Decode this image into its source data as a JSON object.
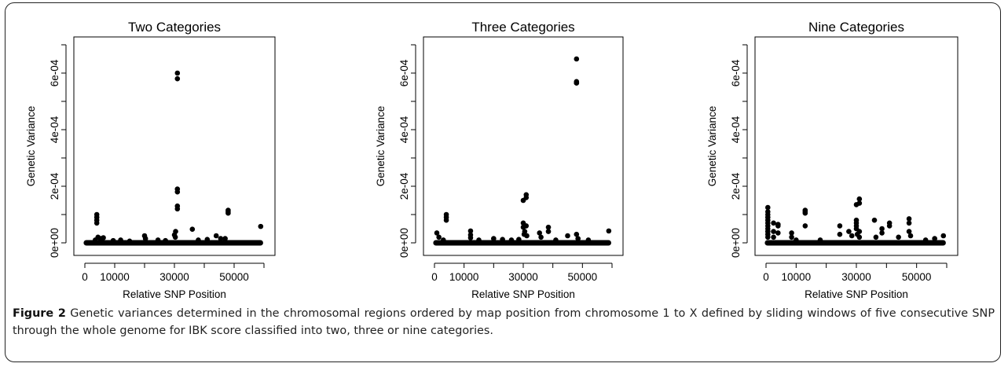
{
  "figure": {
    "label": "Figure 2",
    "caption": "Genetic variances determined in the chromosomal regions ordered by map position from chromosome 1 to X defined by sliding windows of five consecutive SNP through the whole genome for IBK score classified into two, three or nine categories."
  },
  "chart_data": [
    {
      "type": "scatter",
      "title": "Two Categories",
      "xlabel": "Relative SNP Position",
      "ylabel": "Genetic Variance",
      "xlim": [
        0,
        60000
      ],
      "ylim": [
        0,
        0.0007
      ],
      "xticks": [
        "0",
        "10000",
        "30000",
        "50000"
      ],
      "yticks": [
        "0e+00",
        "2e-04",
        "4e-04",
        "6e-04"
      ],
      "baseline_x": [
        500,
        58800
      ],
      "points": [
        [
          4000,
          0.0001
        ],
        [
          4000,
          9e-05
        ],
        [
          4000,
          8e-05
        ],
        [
          4000,
          7e-05
        ],
        [
          4400,
          2e-05
        ],
        [
          3500,
          1e-05
        ],
        [
          5200,
          1.5e-05
        ],
        [
          6200,
          1.8e-05
        ],
        [
          9500,
          8e-06
        ],
        [
          12000,
          1e-05
        ],
        [
          15000,
          6e-06
        ],
        [
          20000,
          2.5e-05
        ],
        [
          20300,
          1.5e-05
        ],
        [
          24500,
          1e-05
        ],
        [
          27000,
          8e-06
        ],
        [
          30000,
          2.8e-05
        ],
        [
          30300,
          2e-05
        ],
        [
          30400,
          4e-05
        ],
        [
          31000,
          0.0006
        ],
        [
          31000,
          0.00058
        ],
        [
          31000,
          0.00019
        ],
        [
          31000,
          0.00018
        ],
        [
          31000,
          0.00013
        ],
        [
          31000,
          0.00012
        ],
        [
          36000,
          4.8e-05
        ],
        [
          38000,
          1e-05
        ],
        [
          41000,
          1.2e-05
        ],
        [
          44000,
          2.5e-05
        ],
        [
          45500,
          1.5e-05
        ],
        [
          48000,
          0.000115
        ],
        [
          48000,
          0.00011
        ],
        [
          48000,
          0.000105
        ],
        [
          47000,
          1.5e-05
        ],
        [
          58900,
          5.8e-05
        ]
      ]
    },
    {
      "type": "scatter",
      "title": "Three Categories",
      "xlabel": "Relative SNP Position",
      "ylabel": "Genetic Variance",
      "xlim": [
        0,
        60000
      ],
      "ylim": [
        0,
        0.0007
      ],
      "xticks": [
        "0",
        "10000",
        "30000",
        "50000"
      ],
      "yticks": [
        "0e+00",
        "2e-04",
        "4e-04",
        "6e-04"
      ],
      "baseline_x": [
        500,
        58800
      ],
      "points": [
        [
          800,
          3.5e-05
        ],
        [
          1500,
          2e-05
        ],
        [
          4000,
          0.0001
        ],
        [
          4000,
          9e-05
        ],
        [
          4000,
          8e-05
        ],
        [
          3000,
          1e-05
        ],
        [
          12200,
          4.2e-05
        ],
        [
          12200,
          2.8e-05
        ],
        [
          12200,
          1.8e-05
        ],
        [
          15000,
          1e-05
        ],
        [
          20000,
          1.5e-05
        ],
        [
          23000,
          1.2e-05
        ],
        [
          26000,
          1e-05
        ],
        [
          28500,
          1.2e-05
        ],
        [
          30000,
          0.00015
        ],
        [
          31000,
          0.00017
        ],
        [
          31000,
          0.00016
        ],
        [
          30000,
          7e-05
        ],
        [
          30000,
          5.5e-05
        ],
        [
          30500,
          4e-05
        ],
        [
          31000,
          6e-05
        ],
        [
          30300,
          3e-05
        ],
        [
          31200,
          2.5e-05
        ],
        [
          35500,
          3.5e-05
        ],
        [
          36000,
          2e-05
        ],
        [
          38500,
          5.5e-05
        ],
        [
          38500,
          4e-05
        ],
        [
          41000,
          1e-05
        ],
        [
          45000,
          2.5e-05
        ],
        [
          48000,
          0.00065
        ],
        [
          48000,
          0.00057
        ],
        [
          48000,
          0.000565
        ],
        [
          48000,
          0.000565
        ],
        [
          48000,
          3e-05
        ],
        [
          48500,
          1.5e-05
        ],
        [
          52000,
          1e-05
        ],
        [
          58900,
          4.2e-05
        ]
      ]
    },
    {
      "type": "scatter",
      "title": "Nine Categories",
      "xlabel": "Relative SNP Position",
      "ylabel": "Genetic Variance",
      "xlim": [
        0,
        60000
      ],
      "ylim": [
        0,
        0.0007
      ],
      "xticks": [
        "0",
        "10000",
        "30000",
        "50000"
      ],
      "yticks": [
        "0e+00",
        "2e-04",
        "4e-04",
        "6e-04"
      ],
      "baseline_x": [
        500,
        58800
      ],
      "points": [
        [
          600,
          0.000125
        ],
        [
          600,
          0.00011
        ],
        [
          600,
          0.0001
        ],
        [
          600,
          9e-05
        ],
        [
          600,
          8e-05
        ],
        [
          600,
          7e-05
        ],
        [
          600,
          6e-05
        ],
        [
          600,
          5e-05
        ],
        [
          600,
          4e-05
        ],
        [
          600,
          3e-05
        ],
        [
          600,
          2e-05
        ],
        [
          2500,
          7e-05
        ],
        [
          2500,
          4e-05
        ],
        [
          2500,
          2e-05
        ],
        [
          4000,
          6.5e-05
        ],
        [
          4000,
          6e-05
        ],
        [
          4000,
          3.5e-05
        ],
        [
          8500,
          3.5e-05
        ],
        [
          8500,
          2e-05
        ],
        [
          10000,
          1e-05
        ],
        [
          13000,
          0.000115
        ],
        [
          13000,
          0.00011
        ],
        [
          13000,
          0.000105
        ],
        [
          13000,
          6e-05
        ],
        [
          18000,
          1e-05
        ],
        [
          24500,
          6e-05
        ],
        [
          24500,
          3e-05
        ],
        [
          27500,
          4e-05
        ],
        [
          28500,
          2.5e-05
        ],
        [
          30000,
          0.000135
        ],
        [
          31000,
          0.000155
        ],
        [
          31000,
          0.00014
        ],
        [
          30000,
          8e-05
        ],
        [
          30000,
          7e-05
        ],
        [
          30000,
          6e-05
        ],
        [
          30000,
          5e-05
        ],
        [
          31000,
          4e-05
        ],
        [
          30300,
          3e-05
        ],
        [
          31000,
          2e-05
        ],
        [
          36000,
          8e-05
        ],
        [
          36500,
          2e-05
        ],
        [
          38500,
          5e-05
        ],
        [
          38500,
          3.5e-05
        ],
        [
          41000,
          7e-05
        ],
        [
          41000,
          6e-05
        ],
        [
          44000,
          2e-05
        ],
        [
          47500,
          8.5e-05
        ],
        [
          47500,
          7e-05
        ],
        [
          47500,
          4e-05
        ],
        [
          48000,
          2.5e-05
        ],
        [
          53000,
          1e-05
        ],
        [
          56000,
          1.5e-05
        ],
        [
          58900,
          2.5e-05
        ]
      ]
    }
  ]
}
